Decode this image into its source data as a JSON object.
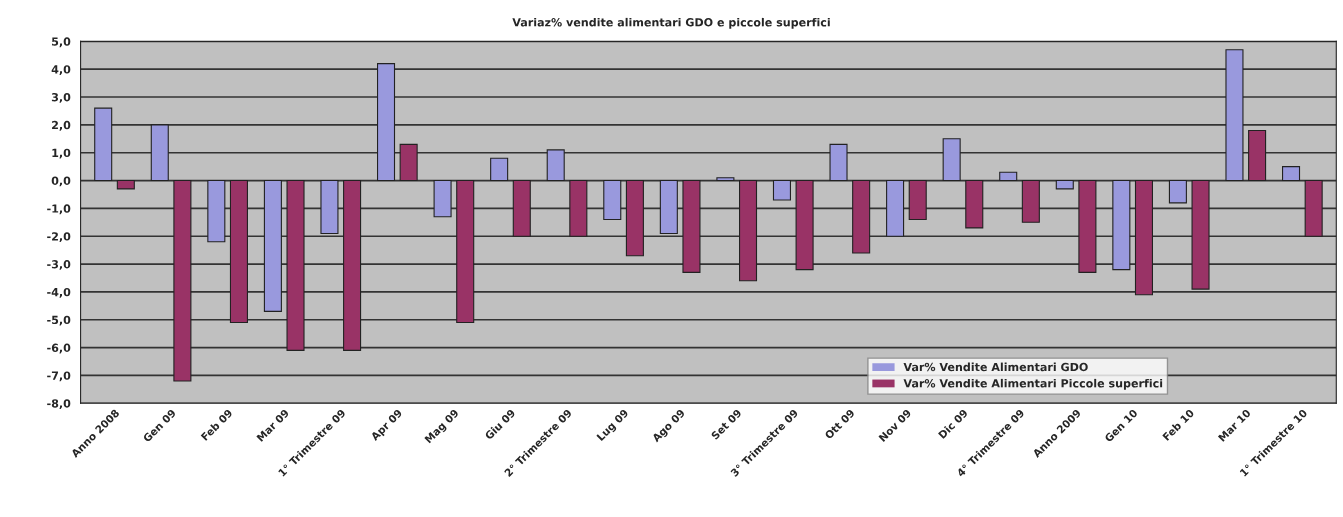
{
  "chart_data": {
    "type": "bar",
    "title": "Variaz% vendite alimentari GDO e piccole superfici",
    "categories": [
      "Anno 2008",
      "Gen 09",
      "Feb 09",
      "Mar 09",
      "1° Trimestre 09",
      "Apr 09",
      "Mag 09",
      "Giu 09",
      "2° Trimestre 09",
      "Lug 09",
      "Ago 09",
      "Set 09",
      "3° Trimestre 09",
      "Ott 09",
      "Nov 09",
      "Dic 09",
      "4° Trimestre 09",
      "Anno 2009",
      "Gen 10",
      "Feb 10",
      "Mar 10",
      "1° Trimestre 10"
    ],
    "series": [
      {
        "name": "Var% Vendite Alimentari GDO",
        "color": "#9999dd",
        "values": [
          2.6,
          2.0,
          -2.2,
          -4.7,
          -1.9,
          4.2,
          -1.3,
          0.8,
          1.1,
          -1.4,
          -1.9,
          0.1,
          -0.7,
          1.3,
          -2.0,
          1.5,
          0.3,
          -0.3,
          -3.2,
          -0.8,
          4.7,
          0.5
        ]
      },
      {
        "name": "Var% Vendite Alimentari Piccole superfici",
        "color": "#993366",
        "values": [
          -0.3,
          -7.2,
          -5.1,
          -6.1,
          -6.1,
          1.3,
          -5.1,
          -2.0,
          -2.0,
          -2.7,
          -3.3,
          -3.6,
          -3.2,
          -2.6,
          -1.4,
          -1.7,
          -1.5,
          -3.3,
          -4.1,
          -3.9,
          1.8,
          -2.0
        ]
      }
    ],
    "ylim": [
      -8,
      5
    ],
    "yticks": [
      {
        "value": 5,
        "label": "5,0"
      },
      {
        "value": 4,
        "label": "4,0"
      },
      {
        "value": 3,
        "label": "3,0"
      },
      {
        "value": 2,
        "label": "2,0"
      },
      {
        "value": 1,
        "label": "1,0"
      },
      {
        "value": 0,
        "label": "0,0"
      },
      {
        "value": -1,
        "label": "-1,0"
      },
      {
        "value": -2,
        "label": "-2,0"
      },
      {
        "value": -3,
        "label": "-3,0"
      },
      {
        "value": -4,
        "label": "-4,0"
      },
      {
        "value": -5,
        "label": "-5,0"
      },
      {
        "value": -6,
        "label": "-6,0"
      },
      {
        "value": -7,
        "label": "-7,0"
      },
      {
        "value": -8,
        "label": "-8,0"
      }
    ],
    "grid": "y",
    "legend": "bottom right"
  }
}
